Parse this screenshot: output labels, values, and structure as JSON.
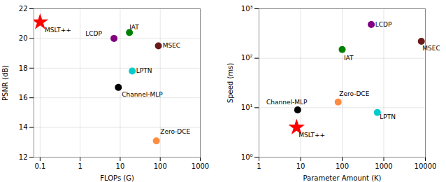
{
  "chart_data": [
    {
      "type": "scatter",
      "xlabel": "FLOPs (G)",
      "ylabel": "PSNR (dB)",
      "log": "x",
      "grid": true,
      "xlim": [
        0.07,
        1000
      ],
      "xticks": [
        0.1,
        1,
        10,
        100,
        1000
      ],
      "ylim": [
        12,
        22
      ],
      "yticks": [
        12,
        14,
        16,
        18,
        20,
        22
      ],
      "series": [
        {
          "name": "MSLT++",
          "color": "#ff0000",
          "marker": "star",
          "x": [
            0.1
          ],
          "values": [
            21.1
          ]
        },
        {
          "name": "LCDP",
          "color": "#800080",
          "marker": "circle",
          "x": [
            7.0
          ],
          "values": [
            20.0
          ]
        },
        {
          "name": "IAT",
          "color": "#008000",
          "marker": "circle",
          "x": [
            17.0
          ],
          "values": [
            20.4
          ]
        },
        {
          "name": "MSEC",
          "color": "#6b1a1a",
          "marker": "circle",
          "x": [
            90.0
          ],
          "values": [
            19.5
          ]
        },
        {
          "name": "LPTN",
          "color": "#00cccc",
          "marker": "circle",
          "x": [
            20.0
          ],
          "values": [
            17.8
          ]
        },
        {
          "name": "Channel-MLP",
          "color": "#000000",
          "marker": "circle",
          "x": [
            9.0
          ],
          "values": [
            16.7
          ]
        },
        {
          "name": "Zero-DCE",
          "color": "#ff8c40",
          "marker": "circle",
          "x": [
            80.0
          ],
          "values": [
            13.1
          ]
        }
      ],
      "annotations": [
        {
          "text": "MSLT++",
          "x": 0.13,
          "y": 20.55
        },
        {
          "text": "LCDP",
          "x": 3.5,
          "y": 20.3
        },
        {
          "text": "IAT",
          "x": 17.0,
          "y": 20.75
        },
        {
          "text": "MSEC",
          "x": 115.0,
          "y": 19.5
        },
        {
          "text": "LPTN",
          "x": 25.0,
          "y": 17.8
        },
        {
          "text": "Channel-MLP",
          "x": 11.0,
          "y": 16.2
        },
        {
          "text": "Zero-DCE",
          "x": 100.0,
          "y": 13.7
        }
      ]
    },
    {
      "type": "scatter",
      "xlabel": "Parameter Amount (K)",
      "ylabel": "Speed (ms)",
      "log": true,
      "grid": true,
      "xlim": [
        1,
        10000
      ],
      "xticks": [
        1,
        10,
        100,
        1000,
        10000
      ],
      "ylim": [
        1,
        1000
      ],
      "yticks": [
        {
          "value": 1,
          "label": "10⁰"
        },
        {
          "value": 10,
          "label": "10¹"
        },
        {
          "value": 100,
          "label": "10²"
        },
        {
          "value": 1000,
          "label": "10³"
        }
      ],
      "series": [
        {
          "name": "MSLT++",
          "color": "#ff0000",
          "marker": "star",
          "x": [
            8.0
          ],
          "values": [
            4.0
          ]
        },
        {
          "name": "LCDP",
          "color": "#800080",
          "marker": "circle",
          "x": [
            500.0
          ],
          "values": [
            480.0
          ]
        },
        {
          "name": "IAT",
          "color": "#008000",
          "marker": "circle",
          "x": [
            100.0
          ],
          "values": [
            150.0
          ]
        },
        {
          "name": "MSEC",
          "color": "#6b1a1a",
          "marker": "circle",
          "x": [
            8000.0
          ],
          "values": [
            220.0
          ]
        },
        {
          "name": "LPTN",
          "color": "#00cccc",
          "marker": "circle",
          "x": [
            700.0
          ],
          "values": [
            8.0
          ]
        },
        {
          "name": "Channel-MLP",
          "color": "#000000",
          "marker": "circle",
          "x": [
            8.5
          ],
          "values": [
            9.0
          ]
        },
        {
          "name": "Zero-DCE",
          "color": "#ff8c40",
          "marker": "circle",
          "x": [
            80.0
          ],
          "values": [
            13.0
          ]
        }
      ],
      "annotations": [
        {
          "text": "MSLT++",
          "x": 9.0,
          "y": 2.8
        },
        {
          "text": "LCDP",
          "x": 620.0,
          "y": 480.0
        },
        {
          "text": "IAT",
          "x": 110.0,
          "y": 100.0
        },
        {
          "text": "MSEC",
          "x": 8500.0,
          "y": 160.0
        },
        {
          "text": "LPTN",
          "x": 800.0,
          "y": 6.5
        },
        {
          "text": "Channel-MLP",
          "x": 1.5,
          "y": 13.0
        },
        {
          "text": "Zero-DCE",
          "x": 85.0,
          "y": 19.0
        }
      ]
    }
  ]
}
